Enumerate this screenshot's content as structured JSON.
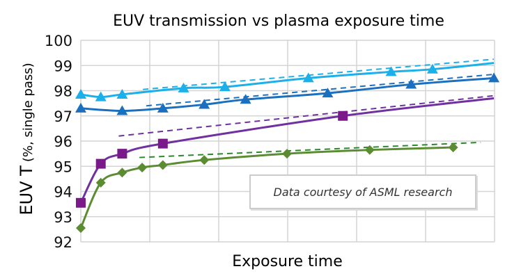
{
  "chart_data": {
    "type": "line",
    "title": "EUV transmission vs plasma exposure time",
    "xlabel": "Exposure time",
    "ylabel": "EUV T",
    "ylabel_sub": "(%, single pass)",
    "xlim": [
      0,
      6
    ],
    "ylim": [
      92,
      100
    ],
    "yticks": [
      "92",
      "93",
      "94",
      "95",
      "96",
      "97",
      "98",
      "99",
      "100"
    ],
    "grid": true,
    "annotation": "Data courtesy of ASML research",
    "series": [
      {
        "color": "#1cb0ea",
        "marker": "triangle",
        "x": [
          0,
          0.29,
          0.6,
          1.49,
          2.09,
          3.3,
          4.5,
          5.1
        ],
        "y": [
          97.85,
          97.75,
          97.85,
          98.1,
          98.15,
          98.5,
          98.75,
          98.85
        ],
        "fit_end": [
          5.99,
          99.1
        ],
        "trend": {
          "x": [
            0.9,
            5.99
          ],
          "y": [
            98.05,
            99.25
          ]
        }
      },
      {
        "color": "#1b6fbf",
        "marker": "triangle",
        "x": [
          0,
          0.6,
          1.19,
          1.79,
          2.39,
          3.58,
          4.79,
          5.99
        ],
        "y": [
          97.3,
          97.2,
          97.3,
          97.45,
          97.65,
          97.9,
          98.25,
          98.5
        ],
        "trend": {
          "x": [
            0.95,
            5.99
          ],
          "y": [
            97.4,
            98.65
          ]
        }
      },
      {
        "color": "#7030a0",
        "markerColor": "#7a1a8a",
        "marker": "square",
        "x": [
          0,
          0.29,
          0.6,
          1.19,
          3.8
        ],
        "y": [
          93.55,
          95.1,
          95.5,
          95.9,
          97.0
        ],
        "fit_end": [
          5.99,
          97.7
        ],
        "trend": {
          "x": [
            0.55,
            5.99
          ],
          "y": [
            96.2,
            97.8
          ]
        }
      },
      {
        "color": "#5b8c32",
        "marker": "diamond",
        "x": [
          0,
          0.29,
          0.6,
          0.89,
          1.19,
          1.79,
          2.99,
          4.19,
          5.4
        ],
        "y": [
          92.55,
          94.35,
          94.75,
          94.95,
          95.05,
          95.25,
          95.5,
          95.65,
          95.75
        ],
        "trendColor": "#2a8a2a",
        "trend": {
          "x": [
            0.85,
            5.8
          ],
          "y": [
            95.35,
            95.95
          ]
        }
      }
    ]
  }
}
